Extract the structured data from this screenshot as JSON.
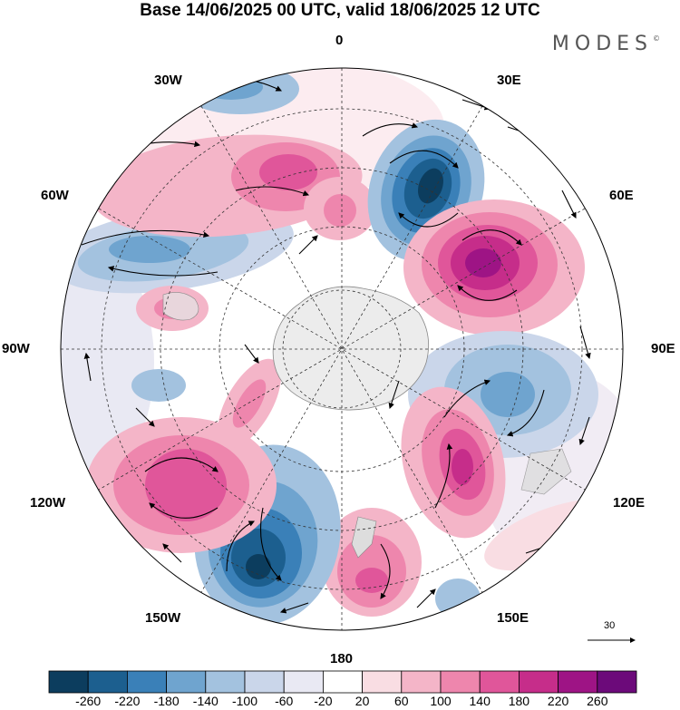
{
  "title": "Base 14/06/2025 00 UTC, valid 18/06/2025 12 UTC",
  "brand": "MODES",
  "brand_mark": "©",
  "longitude_labels": {
    "top": "0",
    "top_right": "30E",
    "right_upper": "60E",
    "right": "90E",
    "right_lower": "120E",
    "bottom_right": "150E",
    "bottom": "180",
    "bottom_left": "150W",
    "left_lower": "120W",
    "left": "90W",
    "left_upper": "60W",
    "top_left": "30W"
  },
  "reference_vector": "30",
  "colorbar": {
    "colors": [
      "#0c3d5e",
      "#1c5f8f",
      "#3a80b8",
      "#6fa4cf",
      "#a3c2df",
      "#cad6ea",
      "#e9e9f3",
      "#ffffff",
      "#f9dde3",
      "#f4b5c8",
      "#ee86ad",
      "#e0569a",
      "#c62d8a",
      "#9e1485",
      "#6c0a7a"
    ],
    "labels": [
      "-260",
      "-220",
      "-180",
      "-140",
      "-100",
      "-60",
      "-20",
      "20",
      "60",
      "100",
      "140",
      "180",
      "220",
      "260"
    ]
  }
}
